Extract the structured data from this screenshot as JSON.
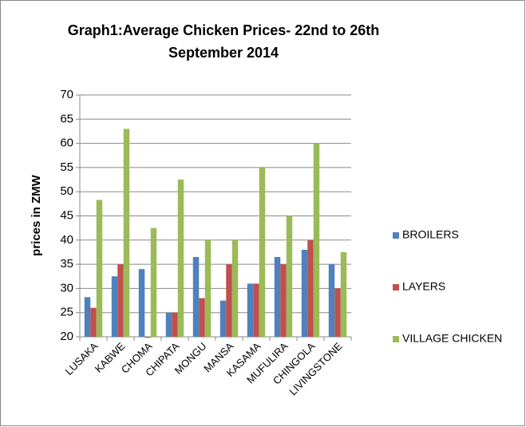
{
  "chart_data": {
    "type": "bar",
    "title": "Graph1:Average Chicken Prices- 22nd to 26th September 2014",
    "y_label": "prices in ZMW",
    "categories": [
      "LUSAKA",
      "KABWE",
      "CHOMA",
      "CHIPATA",
      "MONGU",
      "MANSA",
      "KASAMA",
      "MUFULIRA",
      "CHINGOLA",
      "LIVINGSTONE"
    ],
    "series": [
      {
        "name": "BROILERS",
        "color": "#4f81bd",
        "values": [
          28.2,
          32.5,
          34,
          25,
          36.5,
          27.5,
          31,
          36.5,
          38,
          35
        ]
      },
      {
        "name": "LAYERS",
        "color": "#c0504d",
        "values": [
          26,
          35,
          19.8,
          25,
          28,
          35,
          31,
          35,
          40,
          30
        ]
      },
      {
        "name": "VILLAGE CHICKEN",
        "color": "#9bbb59",
        "values": [
          48.3,
          63,
          42.5,
          52.5,
          40,
          40,
          55,
          45,
          60,
          37.5
        ]
      }
    ],
    "ylim": [
      20,
      70
    ],
    "yticks": [
      20,
      25,
      30,
      35,
      40,
      45,
      50,
      55,
      60,
      65,
      70
    ],
    "grid": true,
    "legend": "right"
  }
}
